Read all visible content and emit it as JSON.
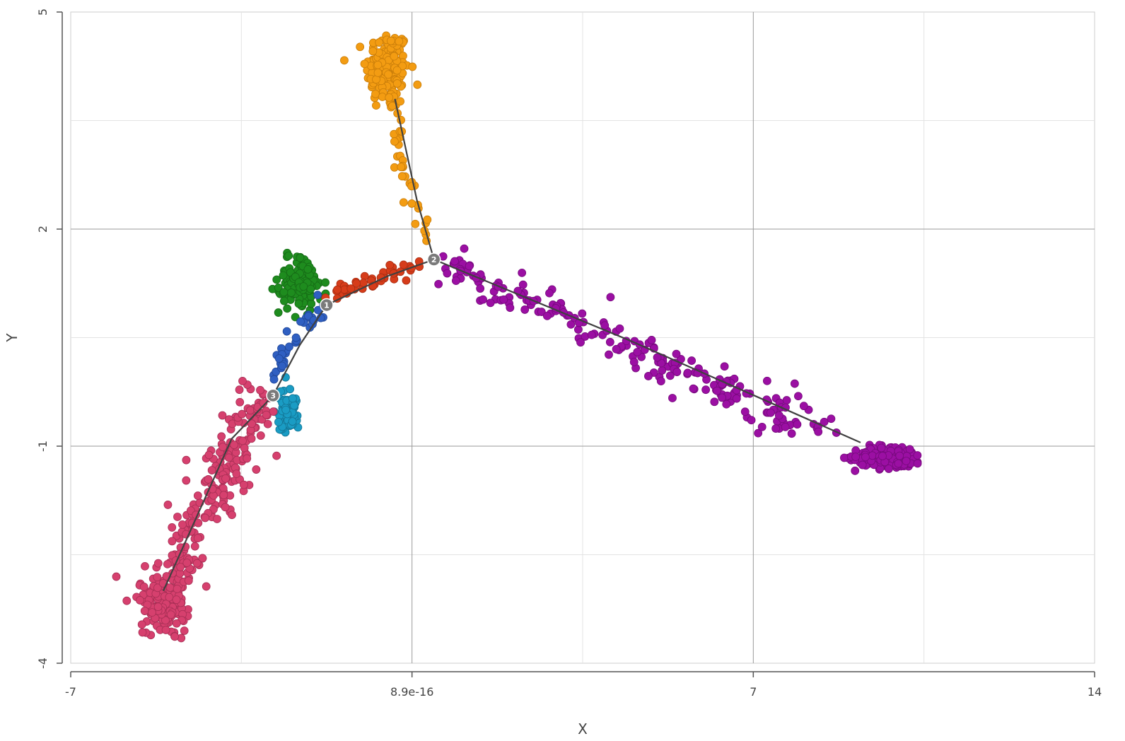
{
  "chart_data": {
    "type": "scatter",
    "title": "",
    "xlabel": "X",
    "ylabel": "Y",
    "xlim": [
      -7,
      14
    ],
    "ylim": [
      -4,
      5
    ],
    "xticks": [
      {
        "value": -7,
        "label": "-7"
      },
      {
        "value": 0,
        "label": "8.9e-16"
      },
      {
        "value": 7,
        "label": "7"
      },
      {
        "value": 14,
        "label": "14"
      }
    ],
    "yticks": [
      {
        "value": -4,
        "label": "-4"
      },
      {
        "value": -1,
        "label": "-1"
      },
      {
        "value": 2,
        "label": "2"
      },
      {
        "value": 5,
        "label": "5"
      }
    ],
    "minor_gridlines": {
      "x": [
        -3.5,
        3.5,
        10.5
      ],
      "y": [
        -2.5,
        0.5,
        3.5
      ]
    },
    "grid": true,
    "legend": "none",
    "clusters": [
      {
        "color": "#f39c12",
        "stroke": "#c97d0a",
        "center": [
          -0.5,
          4.2
        ],
        "spread": [
          0.22,
          0.28
        ],
        "count": 170,
        "path": [
          [
            -0.35,
            3.8
          ],
          [
            -0.3,
            3.3
          ],
          [
            -0.15,
            2.8
          ],
          [
            0.0,
            2.5
          ],
          [
            0.15,
            2.2
          ],
          [
            0.3,
            1.9
          ]
        ],
        "path_count": 35,
        "jitter": 0.06
      },
      {
        "color": "#1e8c1e",
        "stroke": "#166b16",
        "center": [
          -2.3,
          1.25
        ],
        "spread": [
          0.2,
          0.15
        ],
        "count": 140,
        "path": [],
        "path_count": 0,
        "jitter": 0
      },
      {
        "color": "#d63c1a",
        "stroke": "#a82d12",
        "center": [
          -1.2,
          1.2
        ],
        "spread": [
          0,
          0
        ],
        "count": 0,
        "path": [
          [
            -1.75,
            1.05
          ],
          [
            -1.2,
            1.2
          ],
          [
            -0.6,
            1.35
          ],
          [
            0.1,
            1.5
          ]
        ],
        "path_count": 45,
        "jitter": 0.05
      },
      {
        "color": "#2f5fc2",
        "stroke": "#214899",
        "center": [
          -2.7,
          0.2
        ],
        "spread": [
          0,
          0
        ],
        "count": 0,
        "path": [
          [
            -2.9,
            -0.1
          ],
          [
            -2.6,
            0.3
          ],
          [
            -2.2,
            0.6
          ],
          [
            -1.8,
            0.95
          ]
        ],
        "path_count": 38,
        "jitter": 0.07
      },
      {
        "color": "#1a9cc4",
        "stroke": "#137595",
        "center": [
          -2.55,
          -0.5
        ],
        "spread": [
          0.1,
          0.15
        ],
        "count": 90,
        "path": [],
        "path_count": 0,
        "jitter": 0
      },
      {
        "color": "#d6406e",
        "stroke": "#a82f55",
        "center": [
          -5.1,
          -3.2
        ],
        "spread": [
          0.25,
          0.18
        ],
        "count": 160,
        "path": [
          [
            -5.0,
            -3.0
          ],
          [
            -4.5,
            -2.2
          ],
          [
            -4.0,
            -1.5
          ],
          [
            -3.5,
            -0.9
          ],
          [
            -3.0,
            -0.4
          ]
        ],
        "path_count": 230,
        "jitter": 0.2
      },
      {
        "color": "#9b0fa3",
        "stroke": "#760a7c",
        "center": [
          9.8,
          -1.15
        ],
        "spread": [
          0.35,
          0.08
        ],
        "count": 180,
        "path": [
          [
            0.5,
            1.5
          ],
          [
            2.5,
            1.0
          ],
          [
            4.5,
            0.35
          ],
          [
            6.5,
            -0.25
          ],
          [
            8.5,
            -0.85
          ]
        ],
        "path_count": 210,
        "jitter": 0.13
      }
    ],
    "trajectory": [
      {
        "from": 2,
        "to": "leaf-orange",
        "points": [
          [
            -0.35,
            3.8
          ],
          [
            0.1,
            2.4
          ],
          [
            0.45,
            1.58
          ]
        ]
      },
      {
        "from": 2,
        "to": 1,
        "points": [
          [
            0.45,
            1.58
          ],
          [
            -0.5,
            1.35
          ],
          [
            -1.75,
            0.95
          ]
        ]
      },
      {
        "from": 1,
        "to": 3,
        "points": [
          [
            -1.75,
            0.95
          ],
          [
            -2.3,
            0.4
          ],
          [
            -2.85,
            -0.3
          ]
        ]
      },
      {
        "from": 3,
        "to": "leaf-pink",
        "points": [
          [
            -2.85,
            -0.3
          ],
          [
            -3.7,
            -0.9
          ],
          [
            -4.3,
            -1.8
          ],
          [
            -5.1,
            -3.0
          ]
        ]
      },
      {
        "from": 2,
        "to": "leaf-purple",
        "points": [
          [
            0.45,
            1.58
          ],
          [
            4.5,
            0.45
          ],
          [
            9.2,
            -0.95
          ]
        ]
      }
    ],
    "nodes": [
      {
        "label": "1",
        "x": -1.75,
        "y": 0.95
      },
      {
        "label": "2",
        "x": 0.45,
        "y": 1.58
      },
      {
        "label": "3",
        "x": -2.85,
        "y": -0.3
      }
    ]
  }
}
